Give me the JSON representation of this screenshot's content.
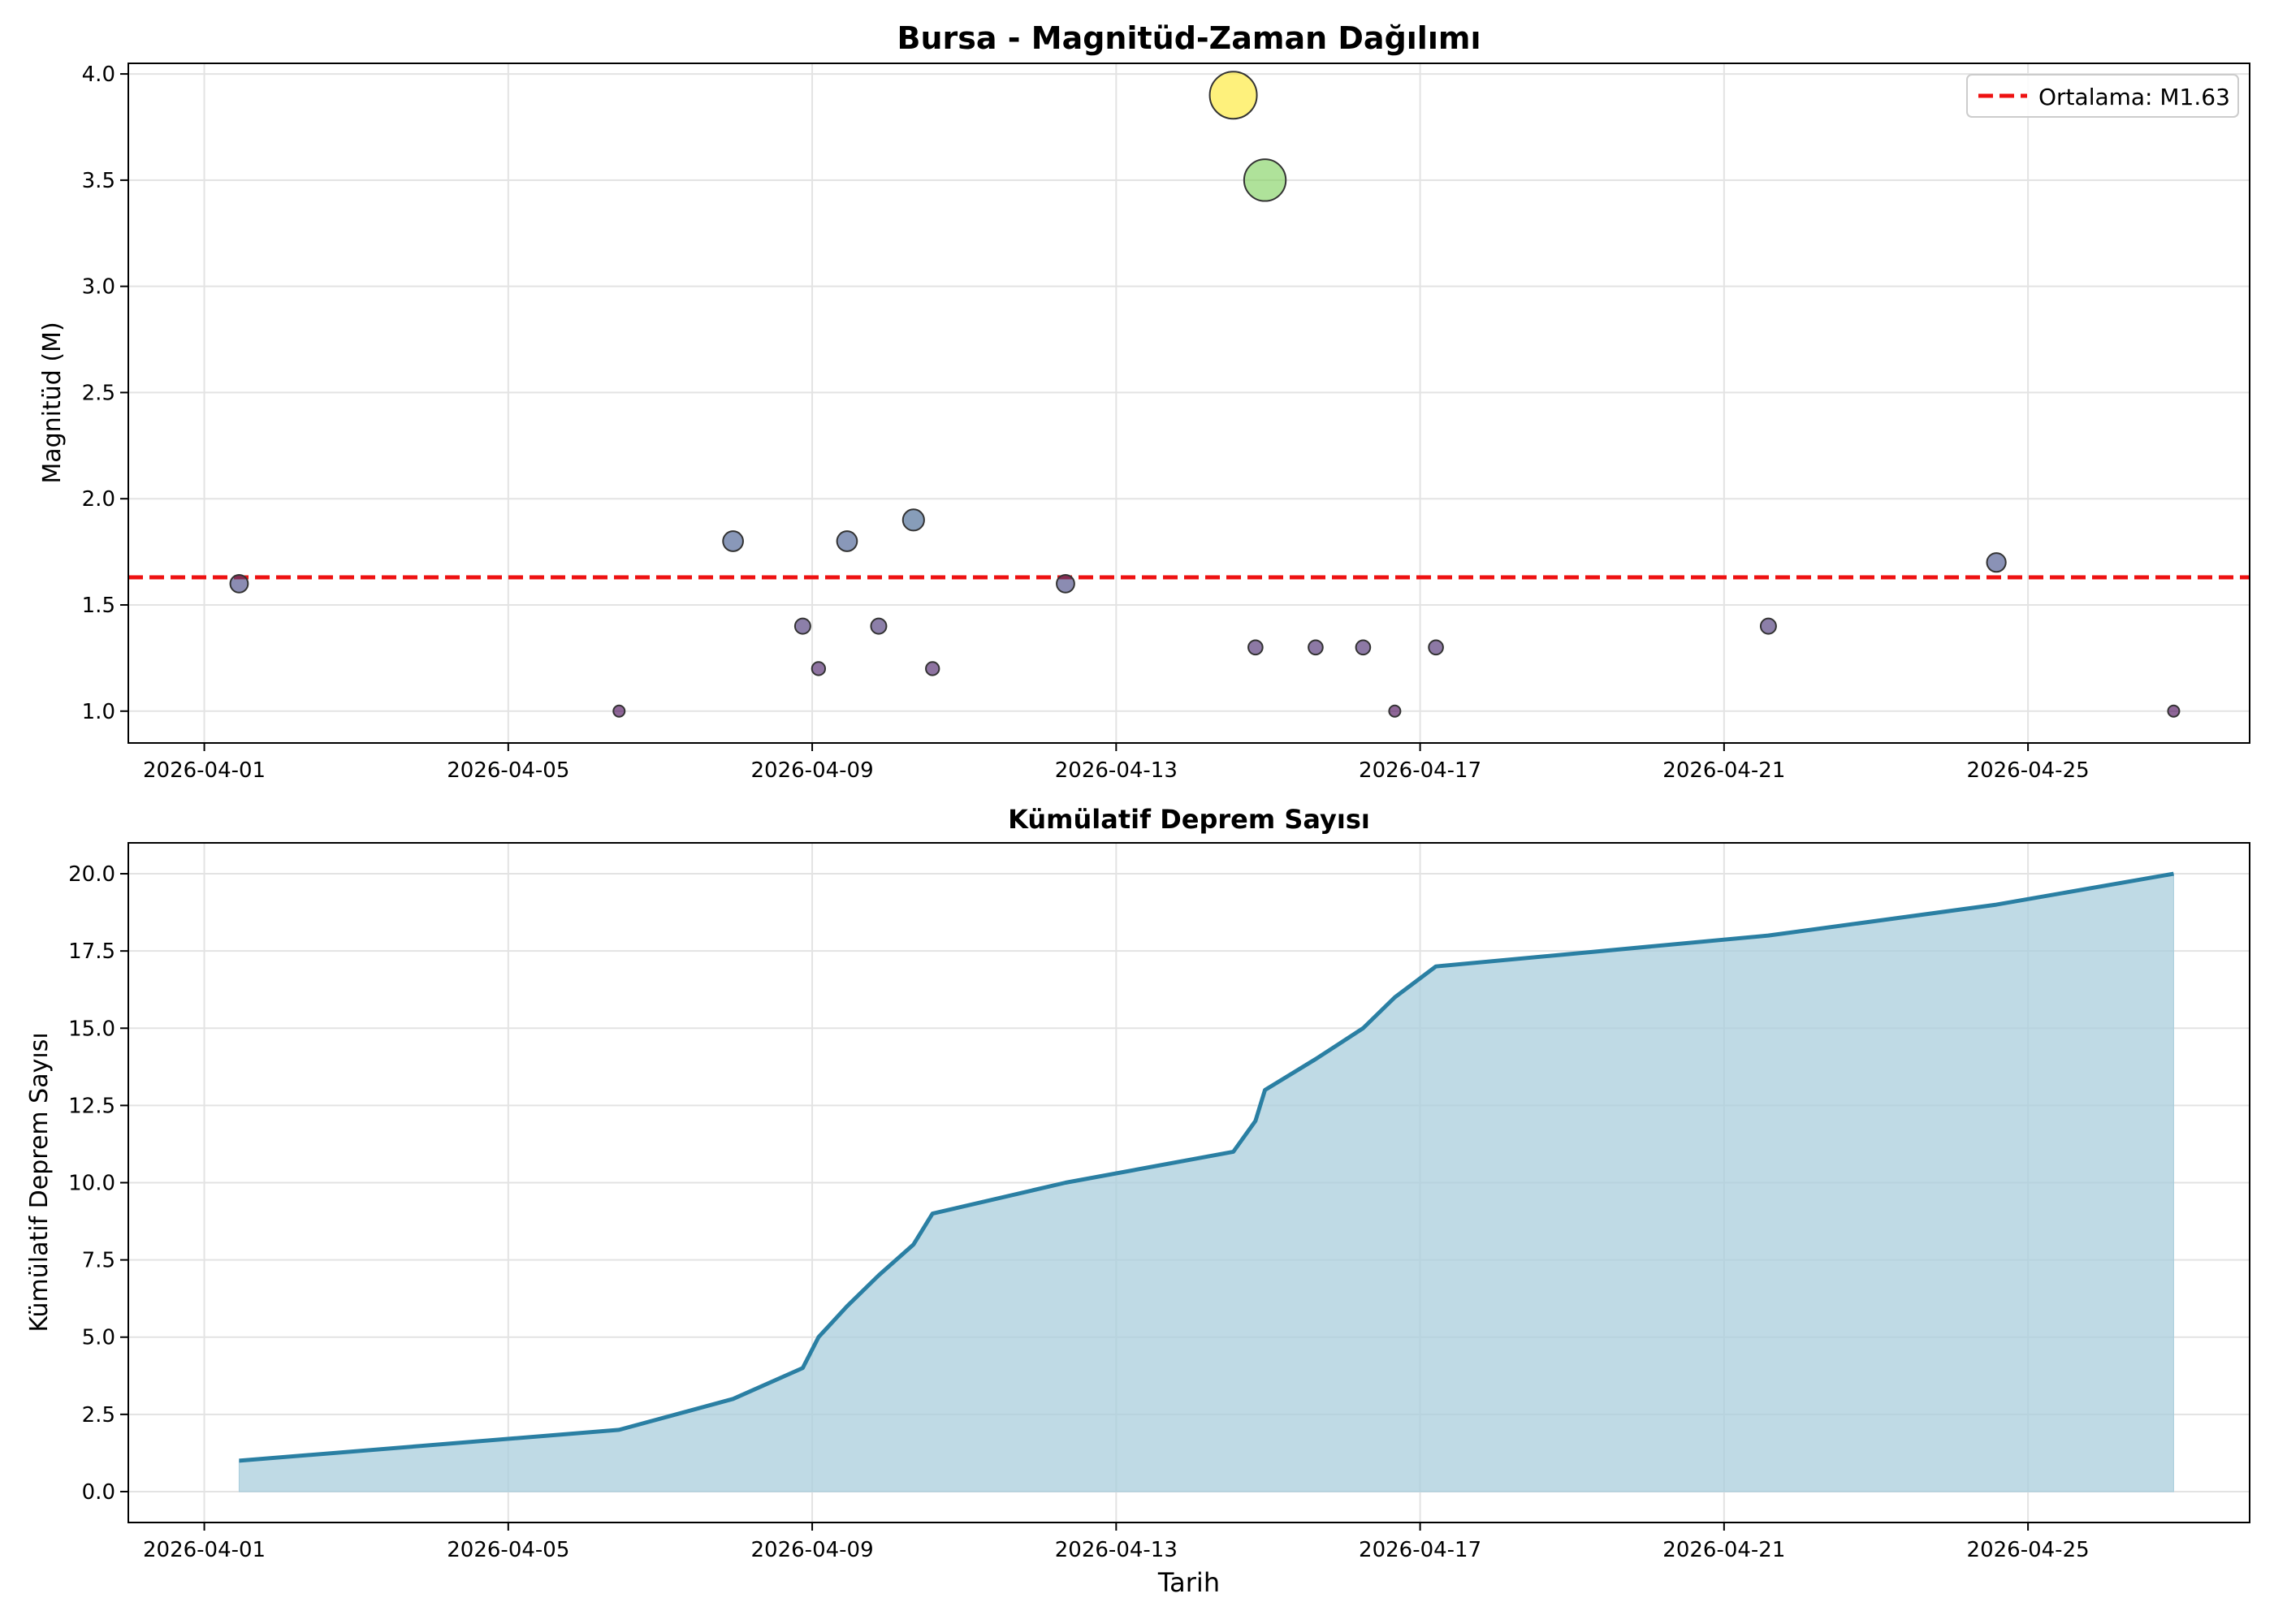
{
  "colors": {
    "mean_line": "#ee1111",
    "cumulative_line": "#2a7fa3",
    "cumulative_fill": "#a9cddc",
    "grid": "#e3e3e3",
    "marker_edge": "#333333"
  },
  "chart_data": [
    {
      "type": "scatter",
      "title": "Bursa - Magnitüd-Zaman Dağılımı",
      "xlabel": "",
      "ylabel": "Magnitüd (M)",
      "xlim": [
        "2026-03-31T00:00",
        "2026-04-27T22:00"
      ],
      "ylim": [
        0.85,
        4.05
      ],
      "xticks": [
        "2026-04-01",
        "2026-04-05",
        "2026-04-09",
        "2026-04-13",
        "2026-04-17",
        "2026-04-21",
        "2026-04-25"
      ],
      "yticks": [
        "1.0",
        "1.5",
        "2.0",
        "2.5",
        "3.0",
        "3.5",
        "4.0"
      ],
      "grid": true,
      "legend": {
        "position": "top-right",
        "label": "Ortalama: M1.63"
      },
      "mean": 1.63,
      "points": [
        {
          "x": "2026-04-01T11:00",
          "y": 1.6
        },
        {
          "x": "2026-04-06T11:00",
          "y": 1.0
        },
        {
          "x": "2026-04-07T23:00",
          "y": 1.8
        },
        {
          "x": "2026-04-08T21:00",
          "y": 1.4
        },
        {
          "x": "2026-04-09T02:00",
          "y": 1.2
        },
        {
          "x": "2026-04-09T11:00",
          "y": 1.8
        },
        {
          "x": "2026-04-09T21:00",
          "y": 1.4
        },
        {
          "x": "2026-04-10T08:00",
          "y": 1.9
        },
        {
          "x": "2026-04-10T14:00",
          "y": 1.2
        },
        {
          "x": "2026-04-12T08:00",
          "y": 1.6
        },
        {
          "x": "2026-04-14T13:00",
          "y": 3.9
        },
        {
          "x": "2026-04-14T20:00",
          "y": 1.3
        },
        {
          "x": "2026-04-14T23:00",
          "y": 3.5
        },
        {
          "x": "2026-04-15T15:00",
          "y": 1.3
        },
        {
          "x": "2026-04-16T06:00",
          "y": 1.3
        },
        {
          "x": "2026-04-16T16:00",
          "y": 1.0
        },
        {
          "x": "2026-04-17T05:00",
          "y": 1.3
        },
        {
          "x": "2026-04-21T14:00",
          "y": 1.4
        },
        {
          "x": "2026-04-24T14:00",
          "y": 1.7
        },
        {
          "x": "2026-04-26T22:00",
          "y": 1.0
        }
      ]
    },
    {
      "type": "area",
      "title": "Kümülatif Deprem Sayısı",
      "xlabel": "Tarih",
      "ylabel": "Kümülatif Deprem Sayısı",
      "xlim": [
        "2026-03-31T00:00",
        "2026-04-27T22:00"
      ],
      "ylim": [
        -1,
        21
      ],
      "xticks": [
        "2026-04-01",
        "2026-04-05",
        "2026-04-09",
        "2026-04-13",
        "2026-04-17",
        "2026-04-21",
        "2026-04-25"
      ],
      "yticks": [
        "0.0",
        "2.5",
        "5.0",
        "7.5",
        "10.0",
        "12.5",
        "15.0",
        "17.5",
        "20.0"
      ],
      "grid": true,
      "x": [
        "2026-04-01T11:00",
        "2026-04-06T11:00",
        "2026-04-07T23:00",
        "2026-04-08T21:00",
        "2026-04-09T02:00",
        "2026-04-09T11:00",
        "2026-04-09T21:00",
        "2026-04-10T08:00",
        "2026-04-10T14:00",
        "2026-04-12T08:00",
        "2026-04-14T13:00",
        "2026-04-14T20:00",
        "2026-04-14T23:00",
        "2026-04-15T15:00",
        "2026-04-16T06:00",
        "2026-04-16T16:00",
        "2026-04-17T05:00",
        "2026-04-21T14:00",
        "2026-04-24T14:00",
        "2026-04-26T22:00"
      ],
      "values": [
        1,
        2,
        3,
        4,
        5,
        6,
        7,
        8,
        9,
        10,
        11,
        12,
        13,
        14,
        15,
        16,
        17,
        18,
        19,
        20
      ]
    }
  ]
}
